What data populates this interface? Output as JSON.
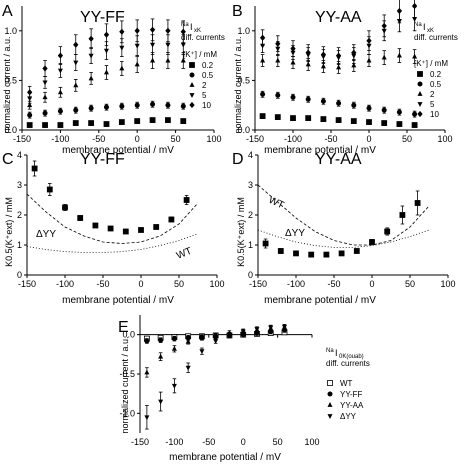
{
  "panels": {
    "A": {
      "letter": "A",
      "title": "YY-FF",
      "xlabel": "membrane potential / mV",
      "ylabel": "normalized current / a.u.",
      "xlim": [
        -150,
        100
      ],
      "ylim": [
        0,
        1.25
      ],
      "xticks": [
        -150,
        -100,
        -50,
        0,
        50,
        100
      ],
      "xtick_labels": [
        "-150",
        "-100",
        "-50",
        "0",
        "50",
        "100"
      ],
      "yticks": [
        0,
        0.5,
        1.0
      ],
      "ytick_labels": [
        "0.0",
        "0.5",
        "1.0"
      ],
      "annotation_main": "Na",
      "annotation_sub": "I",
      "annotation_subsub": "xK",
      "annotation_line2": "diff. currents",
      "legend_title": "[K⁺] / mM",
      "legend_entries": [
        "0.2",
        "0.5",
        "2",
        "5",
        "10"
      ],
      "series": [
        {
          "name": "0.2",
          "marker": "square",
          "x": [
            -140,
            -120,
            -100,
            -80,
            -60,
            -40,
            -20,
            0,
            20,
            40,
            60
          ],
          "y": [
            0.05,
            0.05,
            0.05,
            0.07,
            0.07,
            0.06,
            0.08,
            0.09,
            0.1,
            0.1,
            0.09
          ],
          "err": [
            0.02,
            0.02,
            0.02,
            0.02,
            0.02,
            0.02,
            0.02,
            0.02,
            0.02,
            0.02,
            0.02
          ]
        },
        {
          "name": "0.5",
          "marker": "circle",
          "x": [
            -140,
            -120,
            -100,
            -80,
            -60,
            -40,
            -20,
            0,
            20,
            40,
            60
          ],
          "y": [
            0.15,
            0.17,
            0.19,
            0.2,
            0.22,
            0.23,
            0.24,
            0.25,
            0.26,
            0.25,
            0.24
          ],
          "err": [
            0.03,
            0.03,
            0.03,
            0.03,
            0.03,
            0.03,
            0.03,
            0.03,
            0.03,
            0.03,
            0.03
          ]
        },
        {
          "name": "2",
          "marker": "triangle-up",
          "x": [
            -140,
            -120,
            -100,
            -80,
            -60,
            -40,
            -20,
            0,
            20,
            40,
            60
          ],
          "y": [
            0.25,
            0.33,
            0.38,
            0.45,
            0.52,
            0.58,
            0.62,
            0.66,
            0.7,
            0.7,
            0.7
          ],
          "err": [
            0.04,
            0.05,
            0.05,
            0.06,
            0.06,
            0.07,
            0.07,
            0.08,
            0.08,
            0.08,
            0.08
          ]
        },
        {
          "name": "5",
          "marker": "triangle-down",
          "x": [
            -140,
            -120,
            -100,
            -80,
            -60,
            -40,
            -20,
            0,
            20,
            40,
            60
          ],
          "y": [
            0.32,
            0.48,
            0.6,
            0.68,
            0.75,
            0.8,
            0.83,
            0.85,
            0.86,
            0.86,
            0.86
          ],
          "err": [
            0.05,
            0.06,
            0.07,
            0.08,
            0.08,
            0.09,
            0.09,
            0.1,
            0.1,
            0.1,
            0.1
          ]
        },
        {
          "name": "10",
          "marker": "diamond",
          "x": [
            -140,
            -120,
            -100,
            -80,
            -60,
            -40,
            -20,
            0,
            20,
            40,
            60
          ],
          "y": [
            0.38,
            0.62,
            0.75,
            0.86,
            0.92,
            0.96,
            0.99,
            1.0,
            1.01,
            1.0,
            0.99
          ],
          "err": [
            0.06,
            0.08,
            0.09,
            0.1,
            0.1,
            0.11,
            0.11,
            0.11,
            0.11,
            0.11,
            0.11
          ]
        }
      ]
    },
    "B": {
      "letter": "B",
      "title": "YY-AA",
      "xlabel": "membrane potential / mV",
      "ylabel": "normalized current / a.u.",
      "xlim": [
        -150,
        100
      ],
      "ylim": [
        0,
        1.25
      ],
      "xticks": [
        -150,
        -100,
        -50,
        0,
        50,
        100
      ],
      "xtick_labels": [
        "-150",
        "-100",
        "-50",
        "0",
        "50",
        "100"
      ],
      "yticks": [
        0,
        0.5,
        1.0
      ],
      "ytick_labels": [
        "0.0",
        "0.5",
        "1.0"
      ],
      "annotation_main": "Na",
      "annotation_sub": "I",
      "annotation_subsub": "xK",
      "annotation_line2": "diff. currents",
      "legend_title": "[K⁺] / mM",
      "legend_entries": [
        "0.2",
        "0.5",
        "2",
        "5",
        "10"
      ],
      "series": [
        {
          "name": "0.2",
          "marker": "square",
          "x": [
            -140,
            -120,
            -100,
            -80,
            -60,
            -40,
            -20,
            0,
            20,
            40,
            60
          ],
          "y": [
            0.14,
            0.13,
            0.12,
            0.12,
            0.11,
            0.1,
            0.09,
            0.08,
            0.07,
            0.06,
            0.05
          ],
          "err": [
            0.02,
            0.02,
            0.02,
            0.02,
            0.02,
            0.02,
            0.02,
            0.02,
            0.02,
            0.02,
            0.02
          ]
        },
        {
          "name": "0.5",
          "marker": "circle",
          "x": [
            -140,
            -120,
            -100,
            -80,
            -60,
            -40,
            -20,
            0,
            20,
            40,
            60
          ],
          "y": [
            0.36,
            0.35,
            0.33,
            0.31,
            0.29,
            0.27,
            0.25,
            0.22,
            0.2,
            0.18,
            0.16
          ],
          "err": [
            0.03,
            0.03,
            0.03,
            0.03,
            0.03,
            0.03,
            0.03,
            0.03,
            0.03,
            0.03,
            0.03
          ]
        },
        {
          "name": "2",
          "marker": "triangle-up",
          "x": [
            -140,
            -120,
            -100,
            -80,
            -60,
            -40,
            -20,
            0,
            20,
            40,
            60
          ],
          "y": [
            0.7,
            0.7,
            0.68,
            0.66,
            0.64,
            0.63,
            0.65,
            0.7,
            0.73,
            0.75,
            0.74
          ],
          "err": [
            0.06,
            0.06,
            0.06,
            0.06,
            0.06,
            0.06,
            0.06,
            0.06,
            0.07,
            0.07,
            0.07
          ]
        },
        {
          "name": "5",
          "marker": "triangle-down",
          "x": [
            -140,
            -120,
            -100,
            -80,
            -60,
            -40,
            -20,
            0,
            20,
            40,
            60
          ],
          "y": [
            0.85,
            0.82,
            0.78,
            0.76,
            0.74,
            0.73,
            0.75,
            0.85,
            1.0,
            1.1,
            1.12
          ],
          "err": [
            0.07,
            0.07,
            0.07,
            0.07,
            0.07,
            0.07,
            0.08,
            0.09,
            0.1,
            0.11,
            0.12
          ]
        },
        {
          "name": "10",
          "marker": "diamond",
          "x": [
            -140,
            -120,
            -100,
            -80,
            -60,
            -40,
            -20,
            0,
            20,
            40,
            60
          ],
          "y": [
            0.93,
            0.87,
            0.82,
            0.78,
            0.76,
            0.75,
            0.78,
            0.9,
            1.05,
            1.2,
            1.25
          ],
          "err": [
            0.08,
            0.08,
            0.08,
            0.08,
            0.08,
            0.08,
            0.08,
            0.1,
            0.11,
            0.12,
            0.12
          ]
        }
      ]
    },
    "C": {
      "letter": "C",
      "title": "YY-FF",
      "xlabel": "membrane potential / mV",
      "ylabel": "K0.5(K⁺ext) / mM",
      "xlim": [
        -150,
        100
      ],
      "ylim": [
        0,
        4
      ],
      "xticks": [
        -150,
        -100,
        -50,
        0,
        50,
        100
      ],
      "xtick_labels": [
        "-150",
        "-100",
        "-50",
        "0",
        "50",
        "100"
      ],
      "yticks": [
        0,
        1,
        2,
        3,
        4
      ],
      "ytick_labels": [
        "0",
        "1",
        "2",
        "3",
        "4"
      ],
      "curve_labels": {
        "wt": "WT",
        "dyy": "ΔYY"
      },
      "points": {
        "x": [
          -140,
          -120,
          -100,
          -80,
          -60,
          -40,
          -20,
          0,
          20,
          40,
          60
        ],
        "y": [
          3.55,
          2.85,
          2.25,
          1.9,
          1.65,
          1.55,
          1.45,
          1.5,
          1.6,
          1.85,
          2.5
        ],
        "err": [
          0.25,
          0.2,
          0.1,
          0.08,
          0.06,
          0.05,
          0.05,
          0.05,
          0.06,
          0.08,
          0.15
        ]
      },
      "curve_wt": {
        "x": [
          -150,
          -125,
          -100,
          -75,
          -50,
          -25,
          0,
          25,
          50,
          75
        ],
        "y": [
          2.7,
          2.1,
          1.6,
          1.3,
          1.1,
          1.05,
          1.1,
          1.3,
          1.7,
          2.4
        ]
      },
      "curve_dyy": {
        "x": [
          -150,
          -125,
          -100,
          -75,
          -50,
          -25,
          0,
          25,
          50,
          75
        ],
        "y": [
          0.95,
          0.85,
          0.78,
          0.75,
          0.75,
          0.78,
          0.85,
          0.98,
          1.15,
          1.38
        ]
      }
    },
    "D": {
      "letter": "D",
      "title": "YY-AA",
      "xlabel": "membrane potential / mV",
      "ylabel": "K0.5(K⁺ext) / mM",
      "xlim": [
        -150,
        100
      ],
      "ylim": [
        0,
        4
      ],
      "xticks": [
        -150,
        -100,
        -50,
        0,
        50,
        100
      ],
      "xtick_labels": [
        "-150",
        "-100",
        "-50",
        "0",
        "50",
        "100"
      ],
      "yticks": [
        0,
        1,
        2,
        3,
        4
      ],
      "ytick_labels": [
        "0",
        "1",
        "2",
        "3",
        "4"
      ],
      "curve_labels": {
        "wt": "WT",
        "dyy": "ΔYY"
      },
      "points": {
        "x": [
          -140,
          -120,
          -100,
          -80,
          -60,
          -40,
          -20,
          0,
          20,
          40,
          60
        ],
        "y": [
          1.05,
          0.8,
          0.72,
          0.68,
          0.68,
          0.72,
          0.8,
          1.1,
          1.45,
          2.0,
          2.4
        ],
        "err": [
          0.15,
          0.08,
          0.05,
          0.04,
          0.04,
          0.05,
          0.05,
          0.08,
          0.12,
          0.3,
          0.4
        ]
      },
      "curve_wt": {
        "x": [
          -150,
          -125,
          -100,
          -75,
          -50,
          -25,
          0,
          25,
          50,
          75
        ],
        "y": [
          3.0,
          2.45,
          1.9,
          1.45,
          1.15,
          1.0,
          1.0,
          1.15,
          1.6,
          2.3
        ]
      },
      "curve_dyy": {
        "x": [
          -150,
          -125,
          -100,
          -75,
          -50,
          -25,
          0,
          25,
          50,
          75
        ],
        "y": [
          1.5,
          1.28,
          1.1,
          0.98,
          0.92,
          0.92,
          0.98,
          1.1,
          1.28,
          1.5
        ]
      }
    },
    "E": {
      "letter": "E",
      "xlabel": "membrane potential / mV",
      "ylabel": "normalized current / a.u.",
      "xlim": [
        -150,
        100
      ],
      "ylim": [
        -1.25,
        0.25
      ],
      "xticks": [
        -150,
        -100,
        -50,
        0,
        50,
        100
      ],
      "xtick_labels": [
        "-150",
        "-100",
        "-50",
        "0",
        "50",
        "100"
      ],
      "yticks": [
        -1.0,
        -0.5,
        0.0
      ],
      "ytick_labels": [
        "-1.0",
        "-0.5",
        "0.0"
      ],
      "annotation_main": "Na",
      "annotation_sub": "I",
      "annotation_subsub": "0K(ouab)",
      "annotation_line2": "diff. currents",
      "legend_entries": [
        "WT",
        "YY-FF",
        "YY-AA",
        "ΔYY"
      ],
      "series": [
        {
          "name": "WT",
          "marker": "square-open",
          "x": [
            -140,
            -120,
            -100,
            -80,
            -60,
            -40,
            -20,
            0,
            20,
            40,
            60
          ],
          "y": [
            -0.05,
            -0.04,
            -0.03,
            -0.02,
            -0.02,
            -0.01,
            -0.01,
            0.0,
            0.01,
            0.02,
            0.03
          ],
          "err": [
            0.02,
            0.02,
            0.02,
            0.02,
            0.02,
            0.02,
            0.02,
            0.02,
            0.02,
            0.02,
            0.02
          ]
        },
        {
          "name": "YY-FF",
          "marker": "circle",
          "x": [
            -140,
            -120,
            -100,
            -80,
            -60,
            -40,
            -20,
            0,
            20,
            40,
            60
          ],
          "y": [
            -0.08,
            -0.07,
            -0.05,
            -0.04,
            -0.03,
            -0.02,
            -0.01,
            0.0,
            0.02,
            0.04,
            0.06
          ],
          "err": [
            0.03,
            0.03,
            0.03,
            0.03,
            0.03,
            0.03,
            0.03,
            0.03,
            0.03,
            0.03,
            0.03
          ]
        },
        {
          "name": "YY-AA",
          "marker": "triangle-up",
          "x": [
            -140,
            -120,
            -100,
            -80,
            -60,
            -40,
            -20,
            0,
            20,
            40,
            60
          ],
          "y": [
            -0.48,
            -0.28,
            -0.18,
            -0.09,
            -0.04,
            -0.01,
            0.02,
            0.04,
            0.06,
            0.08,
            0.09
          ],
          "err": [
            0.06,
            0.05,
            0.04,
            0.03,
            0.03,
            0.03,
            0.03,
            0.03,
            0.03,
            0.03,
            0.03
          ]
        },
        {
          "name": "ΔYY",
          "marker": "triangle-down",
          "x": [
            -140,
            -120,
            -100,
            -80,
            -60,
            -40,
            -20,
            0,
            20,
            40,
            60
          ],
          "y": [
            -1.05,
            -0.85,
            -0.65,
            -0.42,
            -0.21,
            -0.08,
            0.0,
            0.04,
            0.07,
            0.09,
            0.1
          ],
          "err": [
            0.15,
            0.12,
            0.09,
            0.06,
            0.04,
            0.03,
            0.03,
            0.03,
            0.03,
            0.03,
            0.03
          ]
        }
      ]
    }
  },
  "chart_data": [
    {
      "type": "scatter",
      "panel": "A",
      "title": "YY-FF",
      "xlabel": "membrane potential / mV",
      "ylabel": "normalized current / a.u.",
      "xlim": [
        -150,
        100
      ],
      "ylim": [
        0,
        1.25
      ],
      "legend": "right",
      "series_names": [
        "0.2",
        "0.5",
        "2",
        "5",
        "10"
      ]
    },
    {
      "type": "scatter",
      "panel": "B",
      "title": "YY-AA",
      "xlabel": "membrane potential / mV",
      "ylabel": "normalized current / a.u.",
      "xlim": [
        -150,
        100
      ],
      "ylim": [
        0,
        1.25
      ],
      "legend": "right",
      "series_names": [
        "0.2",
        "0.5",
        "2",
        "5",
        "10"
      ]
    },
    {
      "type": "scatter",
      "panel": "C",
      "title": "YY-FF",
      "xlabel": "membrane potential / mV",
      "ylabel": "K0.5(K⁺ext) / mM",
      "xlim": [
        -150,
        100
      ],
      "ylim": [
        0,
        4
      ]
    },
    {
      "type": "scatter",
      "panel": "D",
      "title": "YY-AA",
      "xlabel": "membrane potential / mV",
      "ylabel": "K0.5(K⁺ext) / mM",
      "xlim": [
        -150,
        100
      ],
      "ylim": [
        0,
        4
      ]
    },
    {
      "type": "scatter",
      "panel": "E",
      "xlabel": "membrane potential / mV",
      "ylabel": "normalized current / a.u.",
      "xlim": [
        -150,
        100
      ],
      "ylim": [
        -1.25,
        0.25
      ],
      "legend": "bottom-right",
      "series_names": [
        "WT",
        "YY-FF",
        "YY-AA",
        "ΔYY"
      ]
    }
  ]
}
